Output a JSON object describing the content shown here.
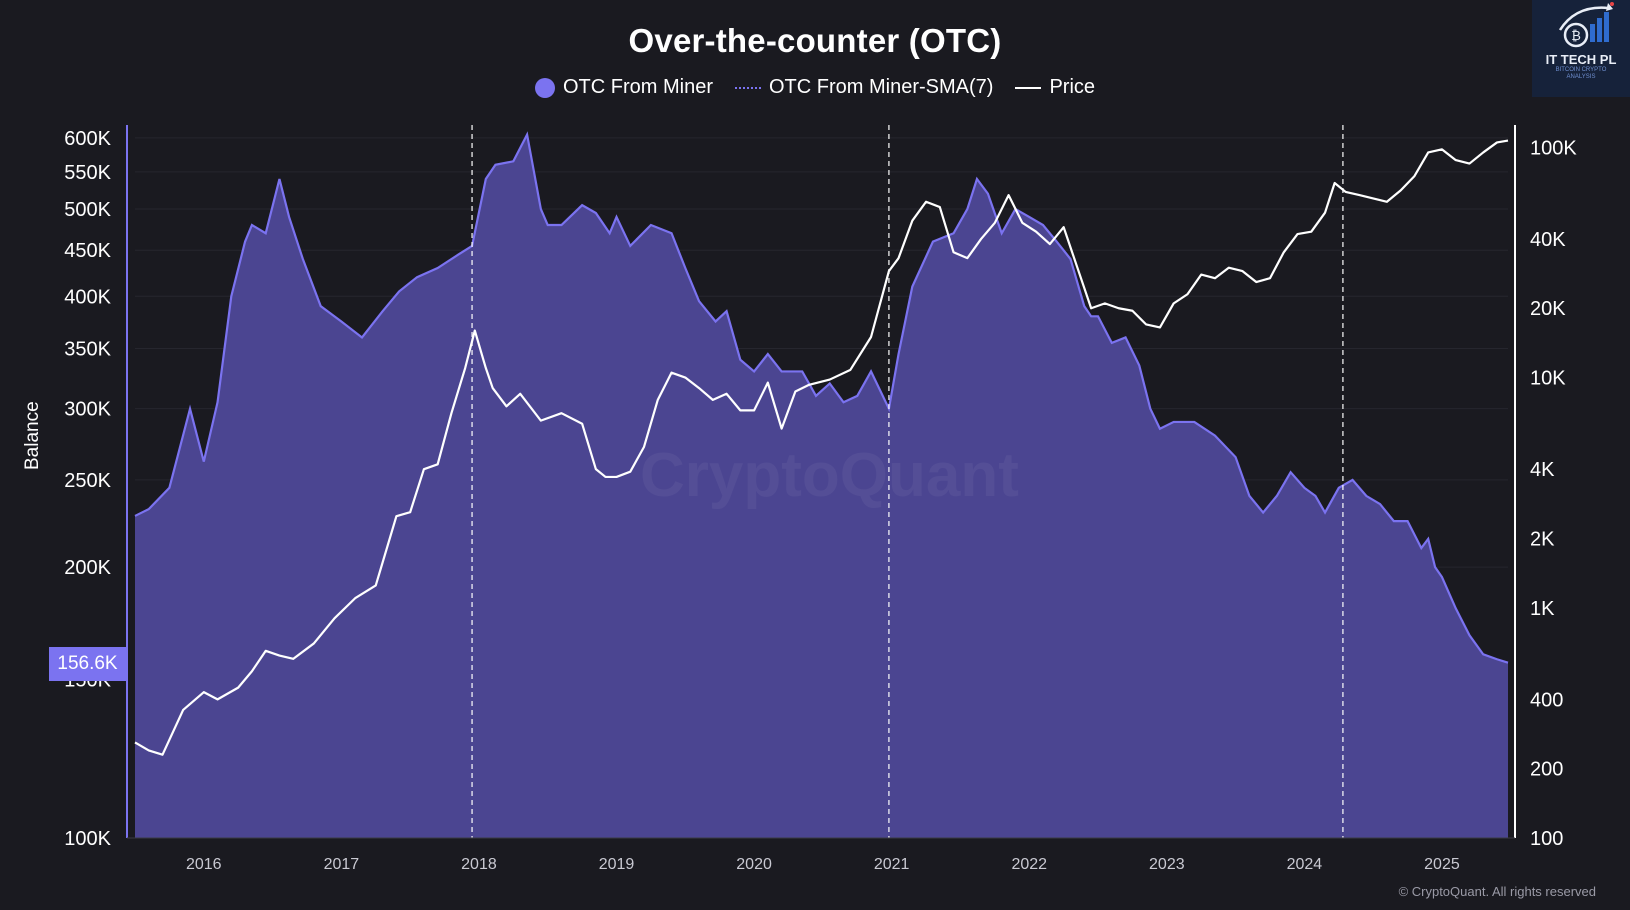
{
  "watermark_text": "CryptoQuant",
  "copyright": "© CryptoQuant. All rights reserved",
  "logo": {
    "title": "IT TECH PL",
    "subtitle_line1": "BITCOIN CRYPTO",
    "subtitle_line2": "ANALYSIS"
  },
  "current_value_badge": "156.6K",
  "colors": {
    "background": "#1a1a20",
    "area": "#4b4591",
    "area_line": "#7b73f0",
    "price": "#ffffff"
  },
  "chart_data": {
    "type": "area",
    "title": "Over-the-counter (OTC)",
    "legend": [
      "OTC From Miner",
      "OTC From Miner-SMA(7)",
      "Price"
    ],
    "ylabel_left": "Balance",
    "ylabel_right": "",
    "y_left_scale": "log",
    "y_right_scale": "log",
    "y_left_ticks": [
      "100K",
      "150K",
      "200K",
      "250K",
      "300K",
      "350K",
      "400K",
      "450K",
      "500K",
      "550K",
      "600K"
    ],
    "y_left_tick_values": [
      100000,
      150000,
      200000,
      250000,
      300000,
      350000,
      400000,
      450000,
      500000,
      550000,
      600000
    ],
    "y_right_ticks": [
      "100",
      "200",
      "400",
      "1K",
      "2K",
      "4K",
      "10K",
      "20K",
      "40K",
      "100K"
    ],
    "y_right_tick_values": [
      100,
      200,
      400,
      1000,
      2000,
      4000,
      10000,
      20000,
      40000,
      100000
    ],
    "x_ticks": [
      "2016",
      "2017",
      "2018",
      "2019",
      "2020",
      "2021",
      "2022",
      "2023",
      "2024",
      "2025"
    ],
    "halving_lines": [
      2017.95,
      2020.98,
      2024.28
    ],
    "x_range": [
      2015.5,
      2025.48
    ],
    "series": [
      {
        "name": "OTC From Miner",
        "x": [
          2015.5,
          2015.6,
          2015.75,
          2015.9,
          2016.0,
          2016.1,
          2016.2,
          2016.3,
          2016.35,
          2016.45,
          2016.55,
          2016.62,
          2016.72,
          2016.85,
          2017.0,
          2017.15,
          2017.3,
          2017.42,
          2017.55,
          2017.7,
          2017.85,
          2017.95,
          2018.05,
          2018.12,
          2018.25,
          2018.35,
          2018.45,
          2018.5,
          2018.6,
          2018.75,
          2018.85,
          2018.95,
          2019.0,
          2019.1,
          2019.25,
          2019.4,
          2019.5,
          2019.6,
          2019.72,
          2019.8,
          2019.9,
          2020.0,
          2020.1,
          2020.2,
          2020.35,
          2020.45,
          2020.55,
          2020.65,
          2020.75,
          2020.85,
          2020.98,
          2021.05,
          2021.15,
          2021.3,
          2021.45,
          2021.55,
          2021.62,
          2021.7,
          2021.8,
          2021.9,
          2022.0,
          2022.1,
          2022.2,
          2022.3,
          2022.4,
          2022.45,
          2022.5,
          2022.6,
          2022.7,
          2022.8,
          2022.88,
          2022.95,
          2023.05,
          2023.2,
          2023.35,
          2023.5,
          2023.6,
          2023.7,
          2023.8,
          2023.9,
          2024.0,
          2024.08,
          2024.15,
          2024.25,
          2024.35,
          2024.45,
          2024.55,
          2024.65,
          2024.75,
          2024.85,
          2024.9,
          2024.95,
          2025.0,
          2025.1,
          2025.2,
          2025.3,
          2025.4,
          2025.48
        ],
        "values": [
          228000,
          232000,
          245000,
          300000,
          262000,
          305000,
          400000,
          460000,
          480000,
          470000,
          540000,
          490000,
          440000,
          390000,
          375000,
          360000,
          385000,
          405000,
          420000,
          430000,
          445000,
          455000,
          540000,
          560000,
          565000,
          605000,
          500000,
          480000,
          480000,
          505000,
          495000,
          470000,
          490000,
          455000,
          480000,
          470000,
          430000,
          395000,
          375000,
          385000,
          340000,
          330000,
          345000,
          330000,
          330000,
          310000,
          320000,
          305000,
          310000,
          330000,
          300000,
          345000,
          410000,
          460000,
          470000,
          500000,
          540000,
          520000,
          470000,
          500000,
          490000,
          480000,
          460000,
          440000,
          390000,
          380000,
          380000,
          355000,
          360000,
          335000,
          300000,
          285000,
          290000,
          290000,
          280000,
          265000,
          240000,
          230000,
          240000,
          255000,
          245000,
          240000,
          230000,
          245000,
          250000,
          240000,
          235000,
          225000,
          225000,
          210000,
          215000,
          200000,
          195000,
          180000,
          168000,
          160000,
          158000,
          156600
        ]
      },
      {
        "name": "Price",
        "x": [
          2015.5,
          2015.6,
          2015.7,
          2015.85,
          2016.0,
          2016.1,
          2016.25,
          2016.35,
          2016.45,
          2016.55,
          2016.65,
          2016.8,
          2016.95,
          2017.1,
          2017.25,
          2017.4,
          2017.5,
          2017.6,
          2017.7,
          2017.8,
          2017.9,
          2017.97,
          2018.05,
          2018.1,
          2018.2,
          2018.3,
          2018.45,
          2018.6,
          2018.75,
          2018.85,
          2018.92,
          2019.0,
          2019.1,
          2019.2,
          2019.3,
          2019.4,
          2019.5,
          2019.6,
          2019.7,
          2019.8,
          2019.9,
          2020.0,
          2020.1,
          2020.2,
          2020.3,
          2020.4,
          2020.55,
          2020.7,
          2020.85,
          2020.98,
          2021.05,
          2021.15,
          2021.25,
          2021.35,
          2021.45,
          2021.55,
          2021.65,
          2021.75,
          2021.85,
          2021.95,
          2022.05,
          2022.15,
          2022.25,
          2022.35,
          2022.45,
          2022.55,
          2022.65,
          2022.75,
          2022.85,
          2022.95,
          2023.05,
          2023.15,
          2023.25,
          2023.35,
          2023.45,
          2023.55,
          2023.65,
          2023.75,
          2023.85,
          2023.95,
          2024.05,
          2024.15,
          2024.22,
          2024.3,
          2024.4,
          2024.5,
          2024.6,
          2024.7,
          2024.8,
          2024.9,
          2025.0,
          2025.1,
          2025.2,
          2025.3,
          2025.4,
          2025.48
        ],
        "values": [
          260,
          240,
          230,
          360,
          430,
          400,
          450,
          530,
          650,
          620,
          600,
          700,
          900,
          1100,
          1250,
          2500,
          2600,
          4000,
          4200,
          7000,
          11000,
          16000,
          11000,
          9000,
          7500,
          8500,
          6500,
          7000,
          6300,
          4000,
          3700,
          3700,
          3900,
          5000,
          8000,
          10500,
          10000,
          9000,
          8000,
          8500,
          7200,
          7200,
          9500,
          6000,
          8700,
          9300,
          9800,
          10800,
          15000,
          29000,
          33000,
          48000,
          58000,
          55000,
          35000,
          33000,
          40000,
          47000,
          62000,
          47000,
          43000,
          38000,
          45000,
          30000,
          20000,
          21000,
          20000,
          19500,
          17000,
          16500,
          21000,
          23000,
          28000,
          27000,
          30000,
          29000,
          26000,
          27000,
          35000,
          42000,
          43000,
          52000,
          70000,
          64000,
          62000,
          60000,
          58000,
          65000,
          75000,
          95000,
          98000,
          88000,
          85000,
          95000,
          105000,
          107000
        ]
      }
    ]
  }
}
